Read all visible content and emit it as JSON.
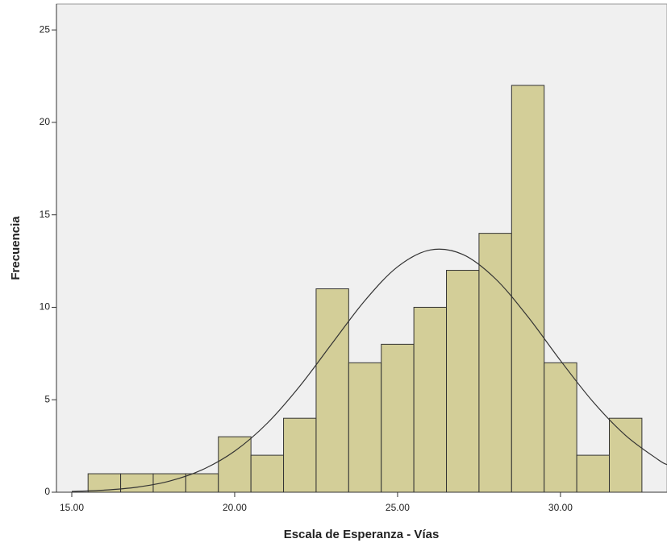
{
  "chart_data": {
    "type": "histogram",
    "xlabel": "Escala de Esperanza - Vías",
    "ylabel": "Frecuencia",
    "bins": [
      15.5,
      16.5,
      17.5,
      18.5,
      19.5,
      20.5,
      21.5,
      22.5,
      23.5,
      24.5,
      25.5,
      26.5,
      27.5,
      28.5,
      29.5,
      30.5,
      31.5,
      32.5
    ],
    "values": [
      1,
      1,
      1,
      1,
      3,
      2,
      4,
      11,
      7,
      8,
      10,
      12,
      14,
      22,
      7,
      2,
      4
    ],
    "color": "#d3ce98",
    "curve": {
      "color": "#333333",
      "x": [
        15,
        16,
        17,
        18,
        19,
        20,
        21,
        22,
        23,
        24,
        25,
        26,
        27,
        28,
        29,
        30,
        31,
        32,
        33,
        33.27
      ],
      "values": [
        0.043,
        0.113,
        0.272,
        0.6,
        1.21,
        2.22,
        3.73,
        5.74,
        8.07,
        10.37,
        12.19,
        13.1,
        12.86,
        11.55,
        9.49,
        7.12,
        4.89,
        3.07,
        1.76,
        1.49
      ]
    },
    "xlim": [
      14.53,
      33.27
    ],
    "ylim": [
      0,
      26.4
    ],
    "xticks": [
      {
        "value": 15,
        "label": "15.00"
      },
      {
        "value": 20,
        "label": "20.00"
      },
      {
        "value": 25,
        "label": "25.00"
      },
      {
        "value": 30,
        "label": "30.00"
      }
    ],
    "yticks": [
      0,
      5,
      10,
      15,
      20,
      25
    ]
  }
}
